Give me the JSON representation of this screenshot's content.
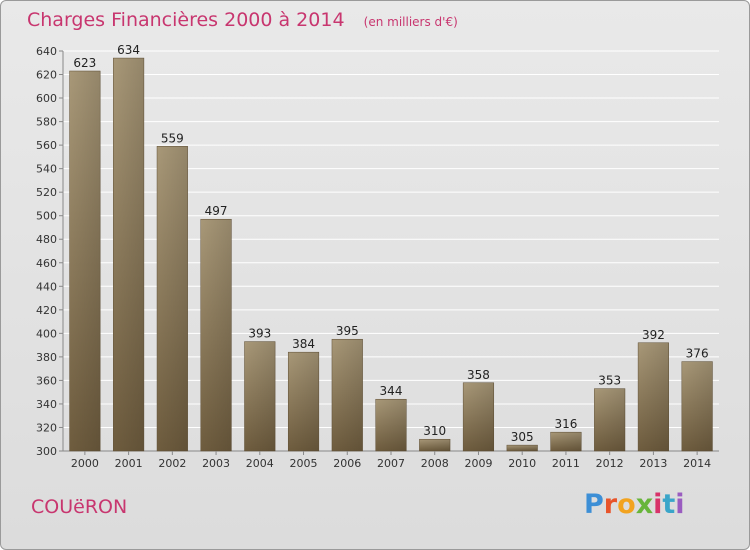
{
  "header": {
    "title": "Charges Financières 2000 à 2014",
    "subtitle": "(en milliers d'€)"
  },
  "footer": {
    "commune": "COUëRON",
    "logo_letters": [
      "P",
      "r",
      "o",
      "x",
      "i",
      "t",
      "i"
    ]
  },
  "colors": {
    "title": "#c8366f",
    "bar_light": "#a89878",
    "bar_dark": "#6e5c3e",
    "grid": "#ffffff"
  },
  "chart_data": {
    "type": "bar",
    "title": "Charges Financières 2000 à 2014",
    "subtitle": "(en milliers d'€)",
    "xlabel": "",
    "ylabel": "",
    "categories": [
      "2000",
      "2001",
      "2002",
      "2003",
      "2004",
      "2005",
      "2006",
      "2007",
      "2008",
      "2009",
      "2010",
      "2011",
      "2012",
      "2013",
      "2014"
    ],
    "values": [
      623,
      634,
      559,
      497,
      393,
      384,
      395,
      344,
      310,
      358,
      305,
      316,
      353,
      392,
      376
    ],
    "ylim": [
      300,
      640
    ],
    "yticks": [
      300,
      320,
      340,
      360,
      380,
      400,
      420,
      440,
      460,
      480,
      500,
      520,
      540,
      560,
      580,
      600,
      620,
      640
    ],
    "grid": true,
    "legend": "none"
  }
}
